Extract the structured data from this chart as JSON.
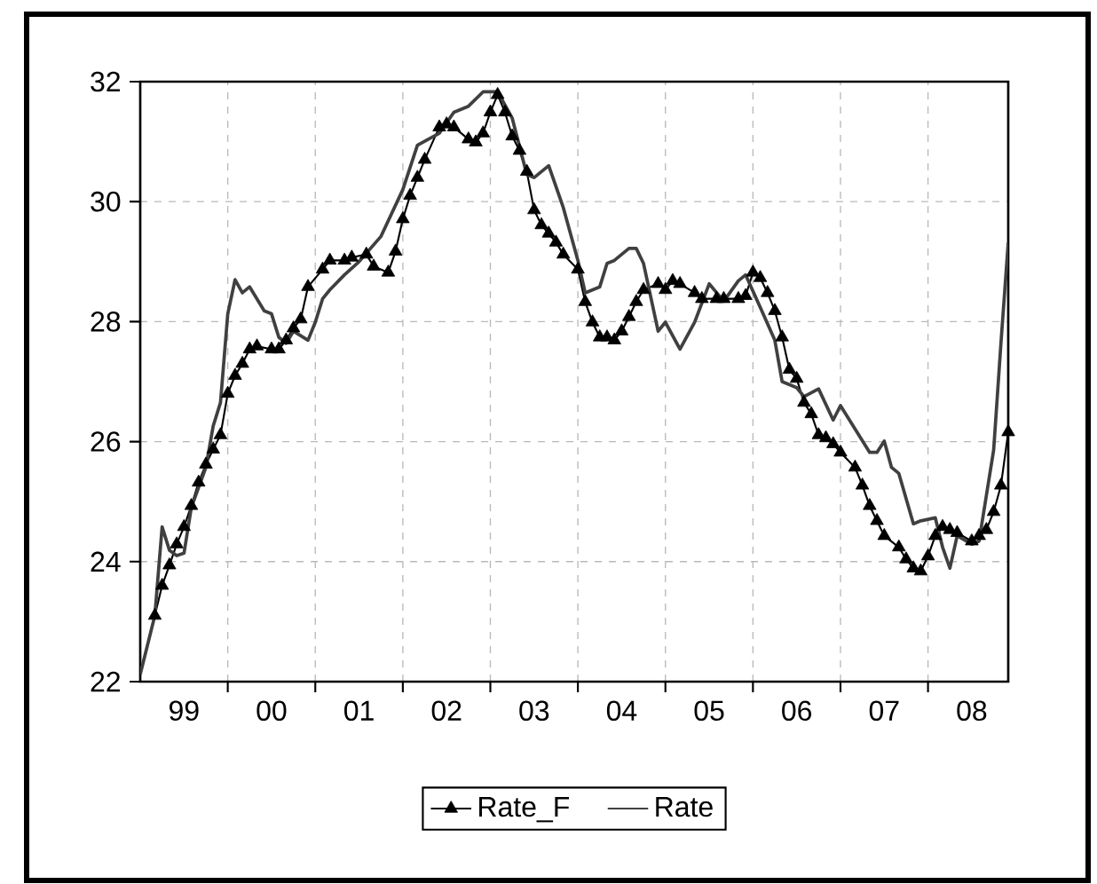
{
  "chart_data": {
    "type": "line",
    "xlim": [
      "1999-01",
      "2008-12"
    ],
    "ylim": [
      22,
      32
    ],
    "xticks": [
      {
        "value": "2000",
        "label": null
      },
      {
        "value": "2001",
        "label": null
      },
      {
        "value": "2002",
        "label": null
      },
      {
        "value": "2003",
        "label": null
      },
      {
        "value": "2004",
        "label": null
      },
      {
        "value": "2005",
        "label": null
      },
      {
        "value": "2006",
        "label": null
      },
      {
        "value": "2007",
        "label": null
      },
      {
        "value": "2008",
        "label": null
      },
      {
        "value": "1999-07",
        "label": "99"
      },
      {
        "value": "2000-07",
        "label": "00"
      },
      {
        "value": "2001-07",
        "label": "01"
      },
      {
        "value": "2002-07",
        "label": "02"
      },
      {
        "value": "2003-07",
        "label": "03"
      },
      {
        "value": "2004-07",
        "label": "04"
      },
      {
        "value": "2005-07",
        "label": "05"
      },
      {
        "value": "2006-07",
        "label": "06"
      },
      {
        "value": "2007-07",
        "label": "07"
      },
      {
        "value": "2008-07",
        "label": "08"
      }
    ],
    "yticks": [
      22,
      24,
      26,
      28,
      30,
      32
    ],
    "grid": true,
    "legend": "bottom",
    "line_style": "solid",
    "series": [
      {
        "name": "Rate_F",
        "color": "#000000",
        "marker": "triangle",
        "x": [
          "1999-03",
          "1999-04",
          "1999-05",
          "1999-06",
          "1999-07",
          "1999-08",
          "1999-09",
          "1999-10",
          "1999-11",
          "1999-12",
          "2000-01",
          "2000-02",
          "2000-03",
          "2000-04",
          "2000-05",
          "2000-07",
          "2000-08",
          "2000-09",
          "2000-10",
          "2000-11",
          "2000-12",
          "2001-02",
          "2001-03",
          "2001-05",
          "2001-06",
          "2001-08",
          "2001-09",
          "2001-11",
          "2001-12",
          "2002-01",
          "2002-02",
          "2002-03",
          "2002-04",
          "2002-06",
          "2002-07",
          "2002-08",
          "2002-10",
          "2002-11",
          "2002-12",
          "2003-01",
          "2003-02",
          "2003-03",
          "2003-04",
          "2003-05",
          "2003-06",
          "2003-07",
          "2003-08",
          "2003-09",
          "2003-10",
          "2003-11",
          "2004-01",
          "2004-02",
          "2004-03",
          "2004-04",
          "2004-05",
          "2004-06",
          "2004-07",
          "2004-08",
          "2004-09",
          "2004-10",
          "2004-12",
          "2005-01",
          "2005-02",
          "2005-03",
          "2005-05",
          "2005-06",
          "2005-08",
          "2005-09",
          "2005-11",
          "2005-12",
          "2006-01",
          "2006-02",
          "2006-03",
          "2006-04",
          "2006-05",
          "2006-06",
          "2006-07",
          "2006-08",
          "2006-09",
          "2006-10",
          "2006-11",
          "2006-12",
          "2007-01",
          "2007-03",
          "2007-04",
          "2007-05",
          "2007-06",
          "2007-07",
          "2007-09",
          "2007-10",
          "2007-11",
          "2007-12",
          "2008-01",
          "2008-02",
          "2008-03",
          "2008-04",
          "2008-05",
          "2008-07",
          "2008-08",
          "2008-09",
          "2008-10",
          "2008-11",
          "2008-12"
        ],
        "values": [
          23.1,
          23.6,
          23.94,
          24.29,
          24.58,
          24.93,
          25.32,
          25.62,
          25.87,
          26.11,
          26.8,
          27.1,
          27.3,
          27.54,
          27.59,
          27.54,
          27.54,
          27.69,
          27.89,
          28.04,
          28.58,
          28.87,
          29.02,
          29.02,
          29.07,
          29.12,
          28.92,
          28.82,
          29.17,
          29.71,
          30.1,
          30.4,
          30.7,
          31.24,
          31.29,
          31.24,
          31.04,
          30.99,
          31.14,
          31.49,
          31.78,
          31.49,
          31.09,
          30.85,
          30.5,
          29.86,
          29.61,
          29.47,
          29.32,
          29.12,
          28.87,
          28.33,
          27.99,
          27.74,
          27.74,
          27.69,
          27.84,
          28.08,
          28.33,
          28.53,
          28.63,
          28.53,
          28.68,
          28.63,
          28.48,
          28.38,
          28.38,
          28.38,
          28.38,
          28.43,
          28.82,
          28.73,
          28.48,
          28.18,
          27.74,
          27.2,
          27.05,
          26.65,
          26.46,
          26.11,
          26.06,
          25.96,
          25.82,
          25.57,
          25.27,
          24.93,
          24.68,
          24.43,
          24.24,
          24.04,
          23.89,
          23.84,
          24.09,
          24.43,
          24.58,
          24.53,
          24.48,
          24.34,
          24.43,
          24.53,
          24.83,
          25.27,
          26.16
        ]
      },
      {
        "name": "Rate",
        "color": "#404040",
        "marker": "none",
        "x": [
          "1999-01",
          "1999-03",
          "1999-04",
          "1999-05",
          "1999-06",
          "1999-07",
          "1999-08",
          "1999-10",
          "1999-11",
          "1999-12",
          "2000-01",
          "2000-02",
          "2000-03",
          "2000-04",
          "2000-06",
          "2000-07",
          "2000-08",
          "2000-09",
          "2000-10",
          "2000-12",
          "2001-01",
          "2001-02",
          "2001-03",
          "2001-05",
          "2001-07",
          "2001-10",
          "2002-01",
          "2002-03",
          "2002-06",
          "2002-08",
          "2002-10",
          "2002-12",
          "2003-02",
          "2003-04",
          "2003-06",
          "2003-07",
          "2003-09",
          "2003-11",
          "2004-01",
          "2004-02",
          "2004-04",
          "2004-05",
          "2004-06",
          "2004-08",
          "2004-09",
          "2004-10",
          "2004-12",
          "2005-01",
          "2005-03",
          "2005-05",
          "2005-07",
          "2005-09",
          "2005-11",
          "2005-12",
          "2006-02",
          "2006-04",
          "2006-05",
          "2006-07",
          "2006-08",
          "2006-10",
          "2006-12",
          "2007-01",
          "2007-05",
          "2007-06",
          "2007-07",
          "2007-08",
          "2007-09",
          "2007-11",
          "2007-12",
          "2008-02",
          "2008-03",
          "2008-04",
          "2008-05",
          "2008-07",
          "2008-08",
          "2008-10",
          "2008-11",
          "2008-12"
        ],
        "values": [
          22.12,
          23.1,
          24.58,
          24.19,
          24.1,
          24.14,
          24.9,
          25.57,
          26.26,
          26.65,
          28.13,
          28.7,
          28.48,
          28.58,
          28.18,
          28.13,
          27.74,
          27.64,
          27.84,
          27.69,
          27.99,
          28.38,
          28.53,
          28.78,
          29.0,
          29.42,
          30.2,
          30.94,
          31.14,
          31.49,
          31.59,
          31.83,
          31.83,
          31.39,
          30.45,
          30.4,
          30.6,
          29.9,
          29.02,
          28.48,
          28.58,
          28.97,
          29.02,
          29.22,
          29.22,
          28.97,
          27.84,
          27.99,
          27.54,
          27.99,
          28.63,
          28.34,
          28.68,
          28.78,
          28.24,
          27.69,
          27.0,
          26.9,
          26.75,
          26.88,
          26.36,
          26.6,
          25.82,
          25.82,
          26.01,
          25.57,
          25.47,
          24.63,
          24.68,
          24.73,
          24.24,
          23.89,
          24.43,
          24.29,
          24.34,
          25.86,
          27.64,
          29.32
        ]
      }
    ]
  }
}
